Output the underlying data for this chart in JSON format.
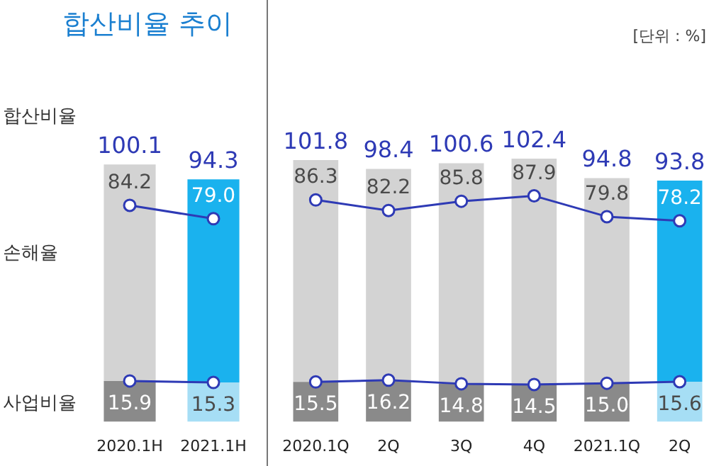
{
  "chart_data": [
    {
      "type": "bar",
      "title": "합산비율 추이",
      "annotations": [
        "합산비율"
      ],
      "categories": [
        "2020.1H",
        "2021.1H"
      ],
      "stacked": true,
      "tick_labels": "x",
      "grid": false,
      "legend": false,
      "marker": "circle",
      "totals": [
        "100.1",
        "94.3"
      ],
      "series": [
        {
          "name": "사업비율",
          "type": "bar",
          "colors": [
            "#8a8a8a",
            "#a6def5"
          ],
          "values": [
            15.9,
            15.3
          ]
        },
        {
          "name": "손해율",
          "type": "bar",
          "colors": [
            "#d3d3d3",
            "#1ab2ee"
          ],
          "values": [
            84.2,
            79.0
          ]
        },
        {
          "type": "line",
          "color": "#2e3ab5",
          "values": [
            84.2,
            79.0
          ],
          "value_labels": [
            "84.2",
            "79.0"
          ]
        },
        {
          "type": "line",
          "color": "#2e3ab5",
          "values": [
            15.9,
            15.3
          ],
          "value_labels": [
            "15.9",
            "15.3"
          ]
        }
      ]
    },
    {
      "type": "bar",
      "annotations": [
        "[단위 : %]"
      ],
      "categories": [
        "2020.1Q",
        "2Q",
        "3Q",
        "4Q",
        "2021.1Q",
        "2Q"
      ],
      "stacked": true,
      "tick_labels": "x",
      "grid": false,
      "legend": false,
      "marker": "circle",
      "totals": [
        "101.8",
        "98.4",
        "100.6",
        "102.4",
        "94.8",
        "93.8"
      ],
      "series": [
        {
          "type": "bar",
          "colors": [
            "#8a8a8a",
            "#8a8a8a",
            "#8a8a8a",
            "#8a8a8a",
            "#8a8a8a",
            "#a6def5"
          ],
          "values": [
            15.5,
            16.2,
            14.8,
            14.5,
            15.0,
            15.6
          ]
        },
        {
          "type": "bar",
          "colors": [
            "#d3d3d3",
            "#d3d3d3",
            "#d3d3d3",
            "#d3d3d3",
            "#d3d3d3",
            "#1ab2ee"
          ],
          "values": [
            86.3,
            82.2,
            85.8,
            87.9,
            79.8,
            78.2
          ]
        },
        {
          "type": "line",
          "color": "#2e3ab5",
          "values": [
            86.3,
            82.2,
            85.8,
            87.9,
            79.8,
            78.2
          ],
          "value_labels": [
            "86.3",
            "82.2",
            "85.8",
            "87.9",
            "79.8",
            "78.2"
          ]
        },
        {
          "type": "line",
          "color": "#2e3ab5",
          "values": [
            15.5,
            16.2,
            14.8,
            14.5,
            15.0,
            15.6
          ],
          "value_labels": [
            "15.5",
            "16.2",
            "14.8",
            "14.5",
            "15.0",
            "15.6"
          ]
        }
      ]
    }
  ]
}
